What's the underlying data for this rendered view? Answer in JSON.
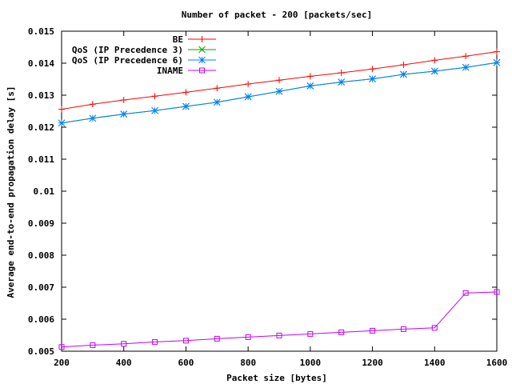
{
  "chart_data": {
    "type": "line",
    "title": "Number of packet - 200 [packets/sec]",
    "xlabel": "Packet size [bytes]",
    "ylabel": "Average end-to-end propagation delay [s]",
    "xlim": [
      200,
      1600
    ],
    "ylim": [
      0.005,
      0.015
    ],
    "xticks": [
      200,
      400,
      600,
      800,
      1000,
      1200,
      1400,
      1600
    ],
    "yticks": [
      0.005,
      0.006,
      0.007,
      0.008,
      0.009,
      0.01,
      0.011,
      0.012,
      0.013,
      0.014,
      0.015
    ],
    "ytick_labels": [
      "0.005",
      "0.006",
      "0.007",
      "0.008",
      "0.009",
      "0.01",
      "0.011",
      "0.012",
      "0.013",
      "0.014",
      "0.015"
    ],
    "grid": false,
    "legend_position": "top-left",
    "x": [
      200,
      300,
      400,
      500,
      600,
      700,
      800,
      900,
      1000,
      1100,
      1200,
      1300,
      1400,
      1500,
      1600
    ],
    "series": [
      {
        "name": "BE",
        "color": "#ff0000",
        "marker": "plus",
        "values": [
          0.01256,
          0.01272,
          0.01285,
          0.01297,
          0.01309,
          0.01322,
          0.01335,
          0.01347,
          0.01359,
          0.0137,
          0.01382,
          0.01395,
          0.01409,
          0.01422,
          0.01436
        ]
      },
      {
        "name": "QoS (IP Precedence 3)",
        "color": "#00a000",
        "marker": "cross",
        "values": [
          0.01213,
          0.01228,
          0.01241,
          0.01252,
          0.01265,
          0.01278,
          0.01295,
          0.01312,
          0.01329,
          0.01341,
          0.01351,
          0.01365,
          0.01375,
          0.01387,
          0.01402
        ]
      },
      {
        "name": "QoS (IP Precedence 6)",
        "color": "#0080ff",
        "marker": "star",
        "values": [
          0.01213,
          0.01228,
          0.01241,
          0.01252,
          0.01265,
          0.01278,
          0.01295,
          0.01312,
          0.01329,
          0.01341,
          0.01351,
          0.01365,
          0.01375,
          0.01387,
          0.01402
        ]
      },
      {
        "name": "INAME",
        "color": "#c000ff",
        "marker": "square",
        "values": [
          0.00513,
          0.00519,
          0.00523,
          0.00529,
          0.00533,
          0.00539,
          0.00544,
          0.00549,
          0.00554,
          0.00559,
          0.00564,
          0.00569,
          0.00573,
          0.00682,
          0.00685
        ]
      }
    ]
  }
}
